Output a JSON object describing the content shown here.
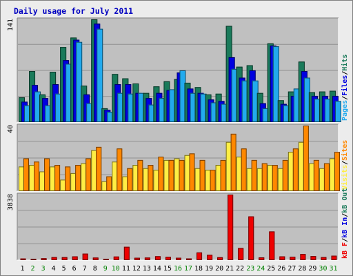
{
  "chart_data": {
    "type": "bar",
    "title": "Daily usage for July 2011",
    "days": [
      "1",
      "2",
      "3",
      "4",
      "5",
      "6",
      "7",
      "8",
      "9",
      "10",
      "11",
      "12",
      "13",
      "14",
      "15",
      "16",
      "17",
      "18",
      "19",
      "20",
      "21",
      "22",
      "23",
      "24",
      "25",
      "26",
      "27",
      "28",
      "29",
      "30",
      "31"
    ],
    "weekend_days": [
      "2",
      "3",
      "9",
      "10",
      "16",
      "17",
      "23",
      "24",
      "30",
      "31"
    ],
    "colors": {
      "hits": "#1a7a5a",
      "files": "#0000e0",
      "pages": "#22aaee",
      "visits": "#ffee44",
      "sites": "#ff8800",
      "kb": "#ee0000",
      "weekday": "#000000",
      "weekend": "#008000",
      "plot_bg": "#c0c0c0"
    },
    "panels": [
      {
        "name": "requests",
        "ymax_label": "141",
        "ymax": 141,
        "legend": [
          {
            "text": "Pages",
            "color": "#22aaee"
          },
          {
            "text": "/",
            "color": "#000000"
          },
          {
            "text": "Files",
            "color": "#0000e0"
          },
          {
            "text": "/",
            "color": "#000000"
          },
          {
            "text": "Hits",
            "color": "#1a7a5a"
          }
        ],
        "series": [
          {
            "name": "Hits",
            "color": "#1a7a5a",
            "values": [
              34,
              70,
              38,
              69,
              103,
              116,
              50,
              141,
              19,
              66,
              60,
              53,
              40,
              49,
              56,
              59,
              54,
              48,
              38,
              39,
              132,
              76,
              78,
              40,
              108,
              30,
              42,
              83,
              41,
              42,
              43
            ]
          },
          {
            "name": "Files",
            "color": "#0000e0",
            "values": [
              28,
              51,
              33,
              52,
              85,
              113,
              38,
              135,
              17,
              52,
              52,
              40,
              33,
              40,
              44,
              68,
              46,
              40,
              31,
              29,
              89,
              61,
              71,
              26,
              105,
              25,
              36,
              70,
              36,
              36,
              36
            ]
          },
          {
            "name": "Pages",
            "color": "#22aaee",
            "values": [
              23,
              42,
              23,
              39,
              80,
              110,
              26,
              128,
              14,
              40,
              39,
              40,
              24,
              33,
              45,
              71,
              40,
              39,
              27,
              25,
              73,
              57,
              57,
              19,
              104,
              23,
              46,
              61,
              32,
              32,
              29
            ]
          }
        ]
      },
      {
        "name": "visitors",
        "ymax_label": "40",
        "ymax": 40,
        "legend": [
          {
            "text": "Visits",
            "color": "#ffee44"
          },
          {
            "text": "/",
            "color": "#000000"
          },
          {
            "text": "Sites",
            "color": "#ff8800"
          }
        ],
        "series": [
          {
            "name": "Visits",
            "color": "#ffee44",
            "values": [
              15,
              16,
              12,
              15,
              7,
              11,
              17,
              25,
              6,
              18,
              9,
              16,
              14,
              13,
              19,
              20,
              22,
              14,
              13,
              16,
              30,
              21,
              14,
              14,
              16,
              14,
              24,
              30,
              17,
              14,
              20
            ]
          },
          {
            "name": "Sites",
            "color": "#ff8800",
            "values": [
              20,
              18,
              20,
              16,
              15,
              16,
              20,
              27,
              9,
              26,
              14,
              19,
              16,
              21,
              19,
              19,
              23,
              19,
              13,
              19,
              35,
              26,
              19,
              17,
              16,
              19,
              26,
              40,
              19,
              17,
              24
            ]
          }
        ]
      },
      {
        "name": "traffic",
        "ymax_label": "3838",
        "ymax": 3838,
        "legend": [
          {
            "text": "kB F",
            "color": "#ee0000"
          },
          {
            "text": "/",
            "color": "#000000"
          },
          {
            "text": "kB In",
            "color": "#0000e0"
          },
          {
            "text": "/",
            "color": "#000000"
          },
          {
            "text": "kB Out",
            "color": "#1a7a5a"
          }
        ],
        "series": [
          {
            "name": "kB F",
            "color": "#ee0000",
            "values": [
              95,
              80,
              110,
              180,
              175,
              220,
              380,
              150,
              75,
              210,
              780,
              140,
              150,
              230,
              190,
              140,
              100,
              450,
              310,
              170,
              3838,
              710,
              2560,
              160,
              1680,
              220,
              200,
              360,
              240,
              180,
              260
            ]
          }
        ]
      }
    ]
  }
}
